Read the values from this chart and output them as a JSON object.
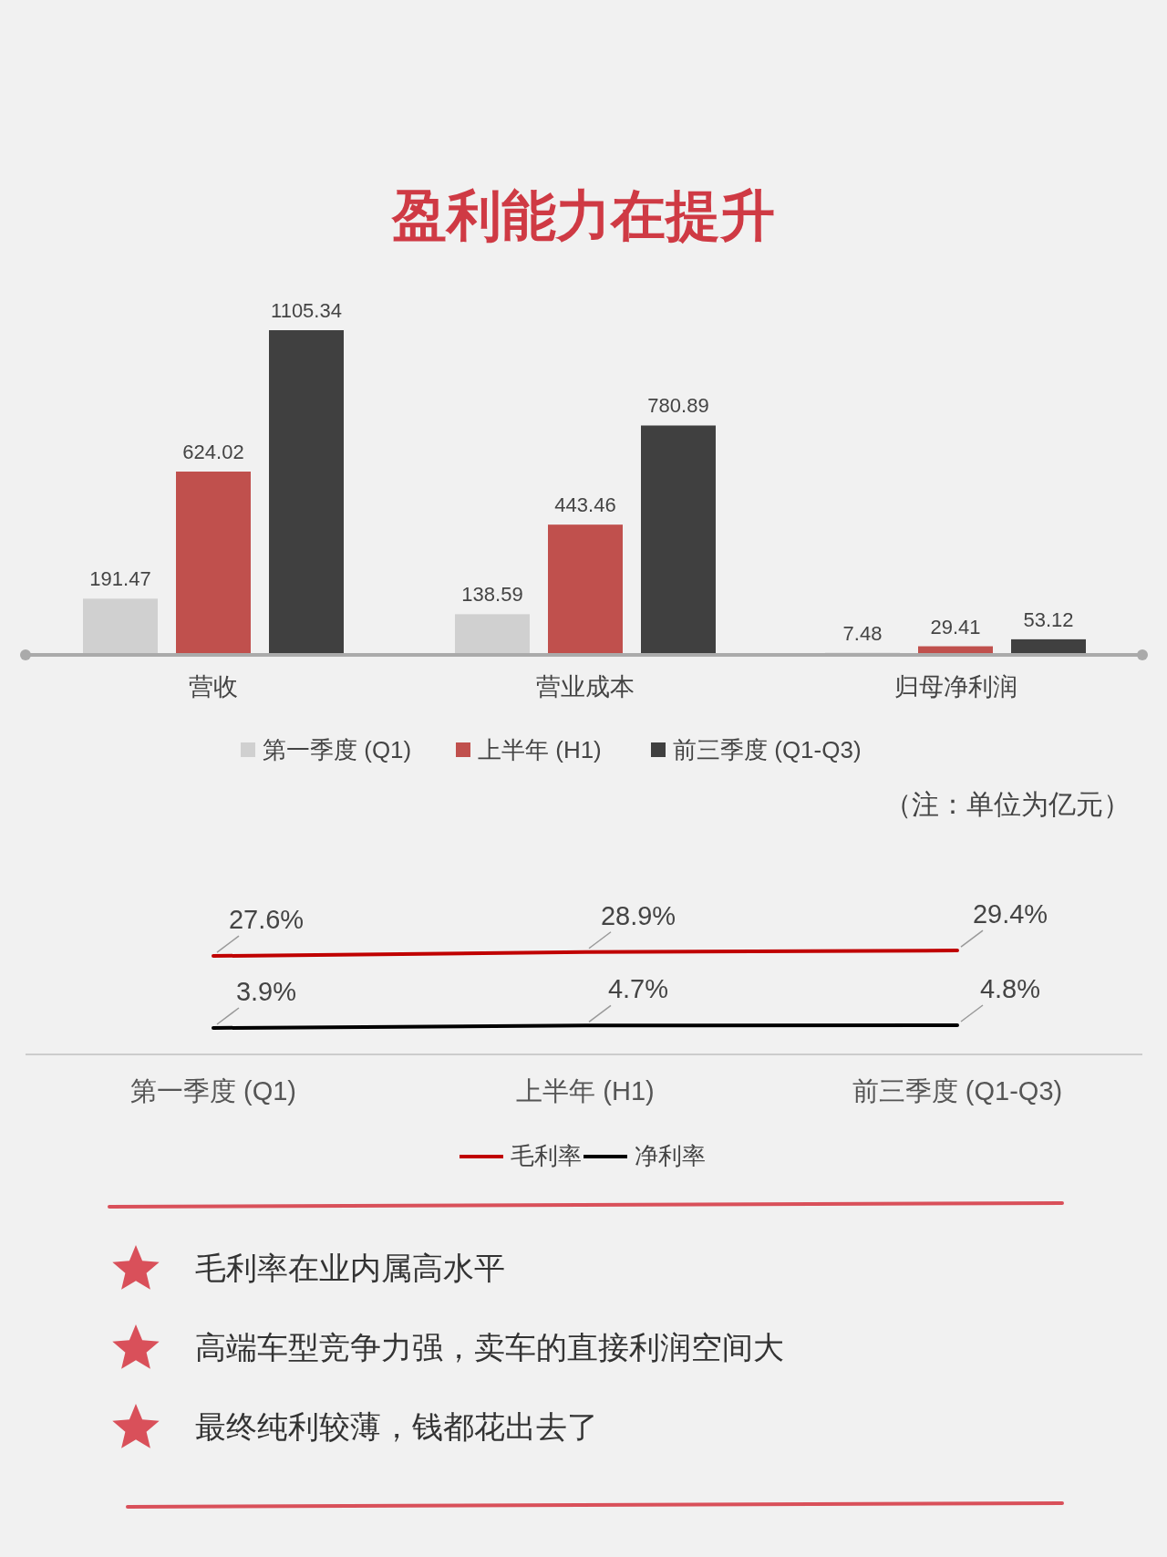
{
  "chart_data": [
    {
      "type": "bar",
      "title": "盈利能力在提升",
      "categories": [
        "营收",
        "营业成本",
        "归母净利润"
      ],
      "data_labels": true,
      "legend": "bottom",
      "annotations": [
        "（注：单位为亿元）"
      ],
      "series": [
        {
          "name": "第一季度 (Q1)",
          "color": "#d0d0d0",
          "values": [
            191.47,
            138.59,
            7.48
          ]
        },
        {
          "name": "上半年 (H1)",
          "color": "#c0504d",
          "values": [
            624.02,
            443.46,
            29.41
          ]
        },
        {
          "name": "前三季度 (Q1-Q3)",
          "color": "#404040",
          "values": [
            1105.34,
            780.89,
            53.12
          ]
        }
      ]
    },
    {
      "type": "line",
      "categories": [
        "第一季度 (Q1)",
        "上半年 (H1)",
        "前三季度 (Q1-Q3)"
      ],
      "legend": "bottom",
      "series": [
        {
          "name": "毛利率",
          "color": "#c00000",
          "values": [
            27.6,
            28.9,
            29.4
          ],
          "value_labels": [
            "27.6%",
            "28.9%",
            "29.4%"
          ]
        },
        {
          "name": "净利率",
          "color": "#000000",
          "values": [
            3.9,
            4.7,
            4.8
          ],
          "value_labels": [
            "3.9%",
            "4.7%",
            "4.8%"
          ]
        }
      ]
    },
    {
      "type": "other",
      "annotations": [
        "毛利率在业内属高水平",
        "高端车型竞争力强，卖车的直接利润空间大",
        "最终纯利较薄，钱都花出去了"
      ]
    }
  ]
}
